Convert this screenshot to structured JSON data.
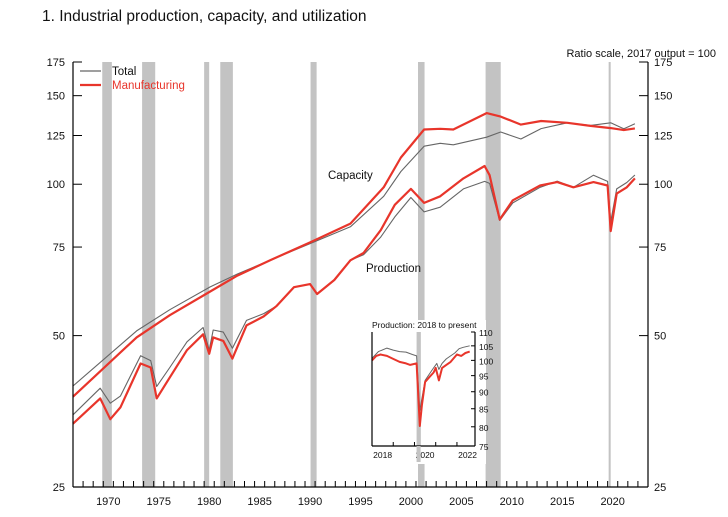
{
  "figure_title": "1.  Industrial production, capacity, and utilization",
  "colors": {
    "total": "#666666",
    "manufacturing": "#e8352b",
    "recession": "#c3c3c3",
    "axis": "#000000"
  },
  "chart_data": [
    {
      "id": "main",
      "type": "line",
      "title": "1.  Industrial production, capacity, and utilization",
      "subtitle": "Ratio scale, 2017 output = 100",
      "xlabel": "",
      "ylabel": "",
      "yscale": "log",
      "xlim": [
        1967,
        2024
      ],
      "ylim": [
        25,
        175
      ],
      "yticks": [
        25,
        50,
        75,
        100,
        125,
        150,
        175
      ],
      "xtick_labels": [
        1970,
        1975,
        1980,
        1985,
        1990,
        1995,
        2000,
        2005,
        2010,
        2015,
        2020
      ],
      "legend": {
        "position": "top-left",
        "entries": [
          "Total",
          "Manufacturing"
        ]
      },
      "annotations": {
        "capacity": "Capacity",
        "production": "Production"
      },
      "recessions": [
        [
          1969.9,
          1970.85
        ],
        [
          1973.85,
          1975.15
        ],
        [
          1980.0,
          1980.5
        ],
        [
          1981.6,
          1982.85
        ],
        [
          1990.55,
          1991.15
        ],
        [
          2001.2,
          2001.85
        ],
        [
          2007.9,
          2009.4
        ],
        [
          2020.1,
          2020.3
        ]
      ],
      "series": [
        {
          "name": "Total capacity",
          "group": "Total",
          "x": [
            1967,
            1973.3,
            1976.6,
            1980.6,
            1983.3,
            1986.6,
            1990.5,
            1994.5,
            1997.8,
            1999.5,
            2001.8,
            2003.4,
            2004.7,
            2008.0,
            2009.4,
            2011.4,
            2013.4,
            2016.0,
            2018.3,
            2020.3,
            2021.6,
            2022.7
          ],
          "y": [
            39.7,
            51.1,
            56.3,
            62.5,
            66.3,
            70.7,
            76.2,
            82.3,
            94.6,
            106.0,
            119.0,
            120.6,
            119.8,
            124.0,
            127.0,
            123.0,
            129.0,
            132.5,
            130.9,
            132.5,
            128.9,
            131.9
          ]
        },
        {
          "name": "Manufacturing capacity",
          "group": "Manufacturing",
          "x": [
            1967,
            1973.3,
            1976.6,
            1980.6,
            1983.3,
            1986.6,
            1990.5,
            1994.5,
            1997.8,
            1999.5,
            2001.8,
            2003.4,
            2004.7,
            2008.0,
            2009.4,
            2011.4,
            2013.4,
            2016.0,
            2018.3,
            2020.3,
            2021.6,
            2022.7
          ],
          "y": [
            37.8,
            49.6,
            54.9,
            61.2,
            65.8,
            70.7,
            76.6,
            83.5,
            98.6,
            113.0,
            128.5,
            128.9,
            128.5,
            138.5,
            136.3,
            131.4,
            133.6,
            132.5,
            130.6,
            129.3,
            128.1,
            129.1
          ]
        },
        {
          "name": "Total production",
          "group": "Total",
          "x": [
            1967,
            1969.7,
            1970.7,
            1971.7,
            1973.7,
            1974.7,
            1975.3,
            1976.6,
            1978.3,
            1979.9,
            1980.5,
            1980.9,
            1981.9,
            1982.8,
            1984.2,
            1985.9,
            1987.2,
            1988.9,
            1990.5,
            1991.2,
            1992.9,
            1994.5,
            1995.8,
            1997.5,
            1998.9,
            2000.5,
            2001.8,
            2003.4,
            2005.7,
            2007.8,
            2008.3,
            2009.3,
            2010.6,
            2013.3,
            2015.0,
            2016.6,
            2018.6,
            2020.0,
            2020.3,
            2020.9,
            2021.9,
            2022.7
          ],
          "y": [
            34.8,
            39.3,
            36.7,
            37.9,
            45.6,
            44.6,
            39.6,
            43.2,
            48.6,
            51.9,
            46.8,
            51.3,
            50.8,
            47.2,
            53.6,
            55.3,
            57.3,
            62.4,
            63.3,
            60.5,
            64.5,
            70.6,
            72.4,
            78.5,
            86.1,
            94.1,
            88.1,
            90.0,
            97.9,
            101.3,
            100.4,
            84.7,
            91.8,
            98.6,
            101.4,
            98.6,
            104.2,
            101.3,
            84.2,
            97.9,
            100.8,
            104.3
          ]
        },
        {
          "name": "Manufacturing production",
          "group": "Manufacturing",
          "x": [
            1967,
            1969.7,
            1970.7,
            1971.7,
            1973.7,
            1974.7,
            1975.3,
            1976.6,
            1978.3,
            1979.9,
            1980.5,
            1980.9,
            1981.9,
            1982.8,
            1984.2,
            1985.9,
            1987.2,
            1988.9,
            1990.5,
            1991.2,
            1992.9,
            1994.5,
            1995.8,
            1997.5,
            1998.9,
            2000.5,
            2001.8,
            2003.4,
            2005.7,
            2007.8,
            2008.3,
            2009.3,
            2010.6,
            2013.3,
            2015.0,
            2016.6,
            2018.6,
            2020.0,
            2020.3,
            2020.9,
            2021.9,
            2022.7
          ],
          "y": [
            33.4,
            37.5,
            34.1,
            36.0,
            44.0,
            43.2,
            37.5,
            41.3,
            46.8,
            50.3,
            46.0,
            49.6,
            48.8,
            45.0,
            52.4,
            54.6,
            57.3,
            62.4,
            63.3,
            60.5,
            64.5,
            70.6,
            73.0,
            81.0,
            91.0,
            97.9,
            91.8,
            94.6,
            102.7,
            108.7,
            104.2,
            85.1,
            92.9,
            99.4,
            101.0,
            98.6,
            101.0,
            99.4,
            80.7,
            95.8,
            98.6,
            102.7
          ]
        }
      ]
    },
    {
      "id": "inset",
      "type": "line",
      "title": "Production: 2018 to present",
      "yscale": "log",
      "xlim": [
        2018,
        2022.85
      ],
      "ylim": [
        75,
        110
      ],
      "yticks": [
        75,
        80,
        85,
        90,
        95,
        100,
        105,
        110
      ],
      "xtick_labels": [
        2018,
        2020,
        2022
      ],
      "recessions": [
        [
          2020.1,
          2020.3
        ]
      ],
      "series": [
        {
          "name": "Total",
          "group": "Total",
          "x": [
            2018.0,
            2018.3,
            2018.7,
            2019.0,
            2019.3,
            2019.6,
            2019.9,
            2020.1,
            2020.25,
            2020.35,
            2020.5,
            2020.7,
            2020.9,
            2021.05,
            2021.15,
            2021.3,
            2021.5,
            2021.7,
            2021.9,
            2022.1,
            2022.3,
            2022.6
          ],
          "y": [
            100.7,
            103.0,
            104.2,
            103.5,
            103.0,
            102.8,
            102.0,
            101.5,
            84.5,
            88.0,
            93.5,
            95.5,
            97.5,
            99.0,
            97.0,
            99.0,
            100.5,
            101.5,
            102.5,
            104.0,
            104.5,
            105.0
          ]
        },
        {
          "name": "Manufacturing",
          "group": "Manufacturing",
          "x": [
            2018.0,
            2018.2,
            2018.4,
            2018.7,
            2019.0,
            2019.3,
            2019.6,
            2019.8,
            2020.1,
            2020.25,
            2020.35,
            2020.5,
            2020.7,
            2020.9,
            2021.0,
            2021.15,
            2021.3,
            2021.5,
            2021.7,
            2022.0,
            2022.2,
            2022.4,
            2022.6
          ],
          "y": [
            100.0,
            101.5,
            102.0,
            101.5,
            100.5,
            99.5,
            99.0,
            98.5,
            99.0,
            80.2,
            86.0,
            93.0,
            94.5,
            96.0,
            97.5,
            93.5,
            97.5,
            98.5,
            99.5,
            102.0,
            101.5,
            102.5,
            103.0
          ]
        }
      ]
    }
  ]
}
